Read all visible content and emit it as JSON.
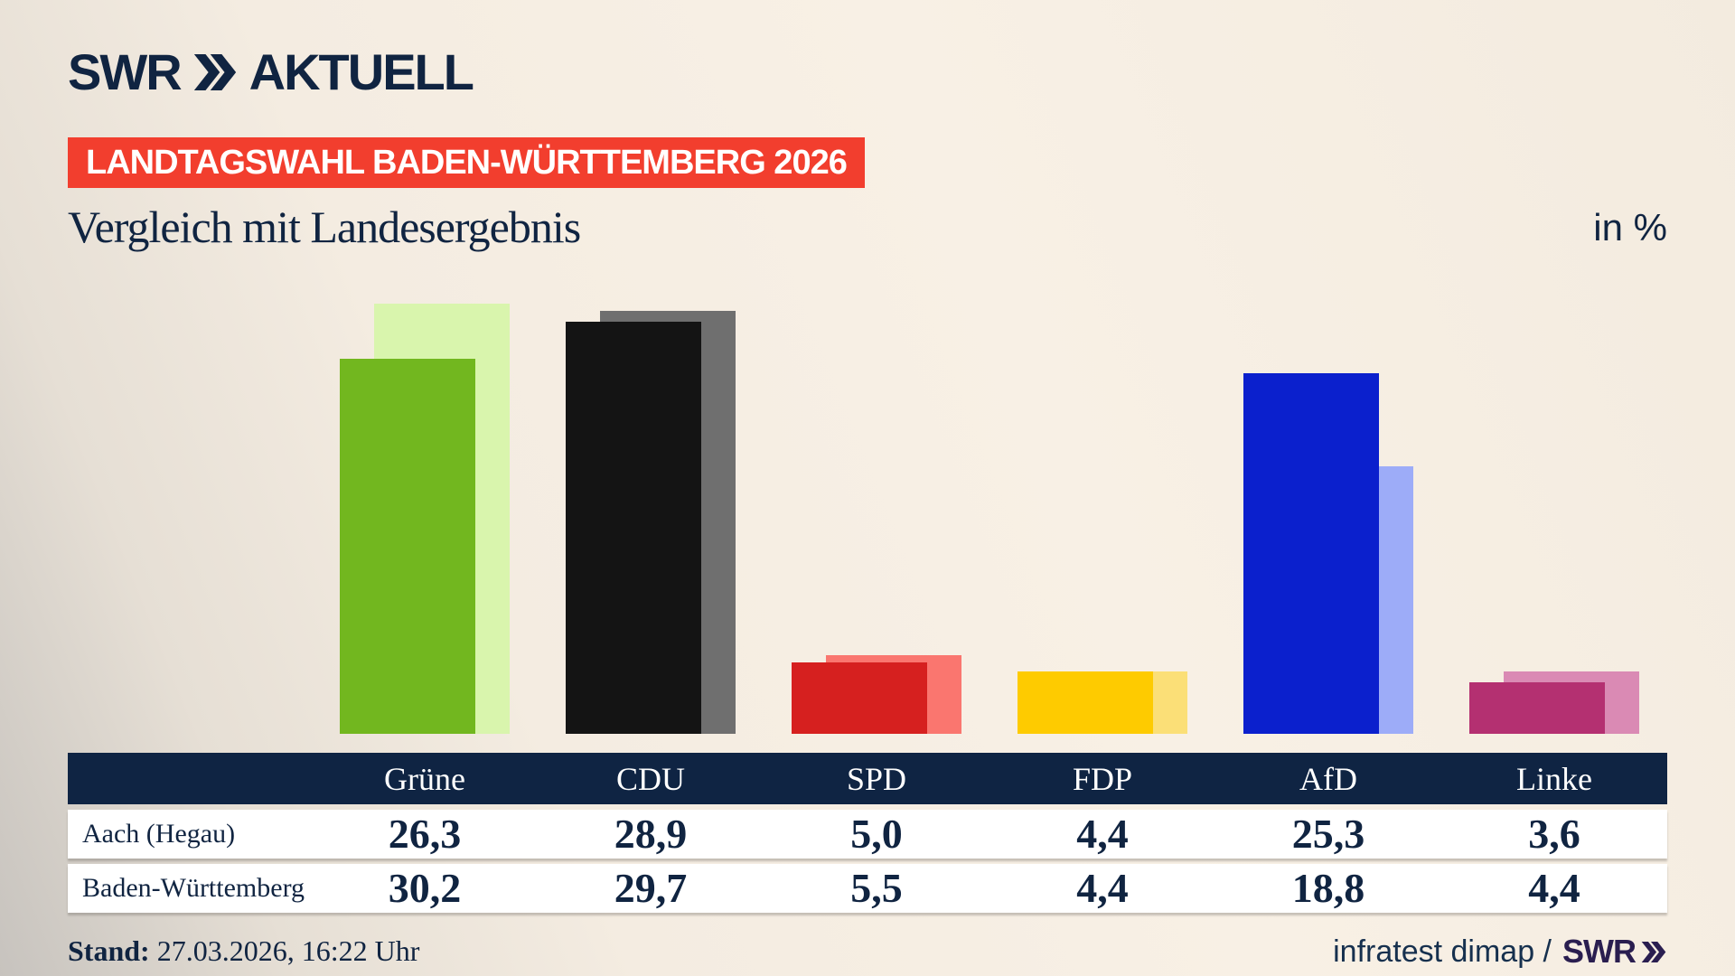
{
  "header": {
    "logo": {
      "brand": "SWR",
      "suffix": "AKTUELL"
    },
    "badge": "LANDTAGSWAHL BADEN-WÜRTTEMBERG 2026",
    "title": "Vergleich mit Landesergebnis",
    "unit_label": "in %"
  },
  "chart_data": {
    "type": "bar",
    "categories": [
      "Grüne",
      "CDU",
      "SPD",
      "FDP",
      "AfD",
      "Linke"
    ],
    "series": [
      {
        "name": "Aach (Hegau)",
        "role": "front",
        "values": [
          26.3,
          28.9,
          5.0,
          4.4,
          25.3,
          3.6
        ]
      },
      {
        "name": "Baden-Württemberg",
        "role": "back",
        "values": [
          30.2,
          29.7,
          5.5,
          4.4,
          18.8,
          4.4
        ]
      }
    ],
    "title": "Vergleich mit Landesergebnis",
    "ylabel": "in %",
    "ylim": [
      0,
      32
    ],
    "grid": false,
    "legend_position": "none",
    "value_labels_in_table": true,
    "colors": {
      "Grüne": {
        "front": "#72b71f",
        "back": "#d9f5ad"
      },
      "CDU": {
        "front": "#141414",
        "back": "#6f6f6f"
      },
      "SPD": {
        "front": "#d6201f",
        "back": "#fa766f"
      },
      "FDP": {
        "front": "#fecb00",
        "back": "#fbdf77"
      },
      "AfD": {
        "front": "#0b20cd",
        "back": "#9dacf8"
      },
      "Linke": {
        "front": "#b43071",
        "back": "#da8ab4"
      }
    }
  },
  "table": {
    "columns": [
      "Grüne",
      "CDU",
      "SPD",
      "FDP",
      "AfD",
      "Linke"
    ],
    "rows": [
      {
        "label": "Aach (Hegau)",
        "values": [
          "26,3",
          "28,9",
          "5,0",
          "4,4",
          "25,3",
          "3,6"
        ]
      },
      {
        "label": "Baden-Württemberg",
        "values": [
          "30,2",
          "29,7",
          "5,5",
          "4,4",
          "18,8",
          "4,4"
        ]
      }
    ]
  },
  "footer": {
    "stand_label": "Stand:",
    "stand_value": " 27.03.2026, 16:22 Uhr",
    "source": "infratest dimap /",
    "source_logo": "SWR"
  },
  "colors": {
    "navy": "#102441",
    "table_header_navy": "#0f2443",
    "badge_red": "#f23e2e",
    "footer_logo_purple": "#2a1e50",
    "background_cream": "#f7efe4"
  }
}
